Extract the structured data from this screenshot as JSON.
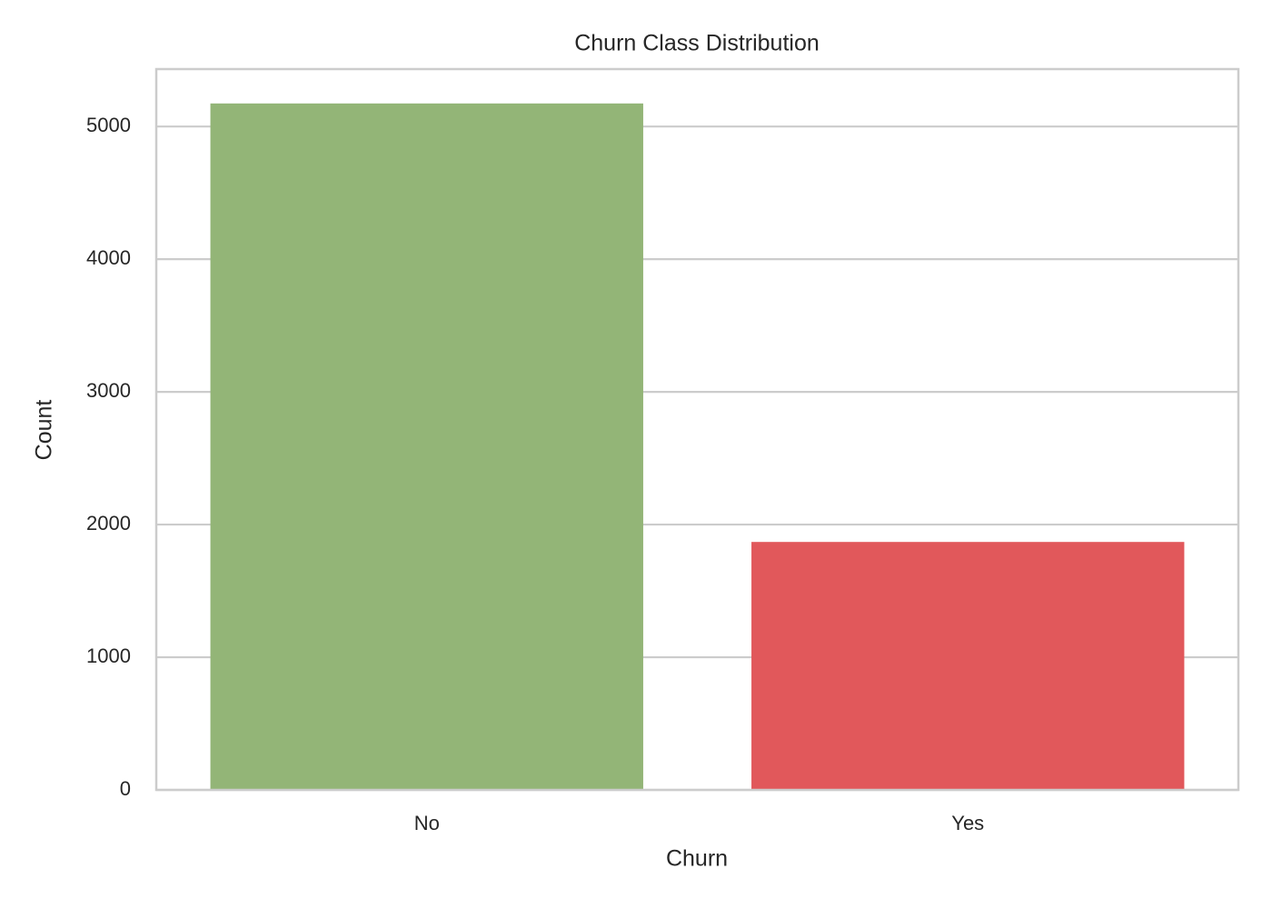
{
  "chart_data": {
    "type": "bar",
    "title": "Churn Class Distribution",
    "x_label": "Churn",
    "y_label": "Count",
    "categories": [
      "No",
      "Yes"
    ],
    "values": [
      5174,
      1869
    ],
    "colors": [
      "#93b577",
      "#e1585b"
    ],
    "ylim": [
      0,
      5433
    ],
    "yticks": [
      0,
      1000,
      2000,
      3000,
      4000,
      5000
    ],
    "grid": true
  }
}
